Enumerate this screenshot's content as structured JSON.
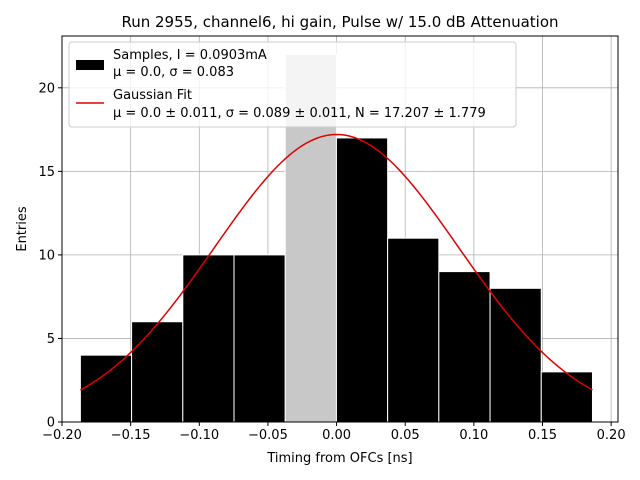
{
  "chart_data": {
    "type": "bar",
    "title": "Run 2955, channel6, hi gain, Pulse w/ 15.0 dB Attenuation",
    "xlabel": "Timing from OFCs [ns]",
    "ylabel": "Entries",
    "xlim": [
      -0.2,
      0.205
    ],
    "ylim": [
      0,
      23.1
    ],
    "grid": true,
    "xticks": [
      -0.2,
      -0.15,
      -0.1,
      -0.05,
      0.0,
      0.05,
      0.1,
      0.15,
      0.2
    ],
    "xtick_labels": [
      "−0.20",
      "−0.15",
      "−0.10",
      "−0.05",
      "0.00",
      "0.05",
      "0.10",
      "0.15",
      "0.20"
    ],
    "yticks": [
      0,
      5,
      10,
      15,
      20
    ],
    "ytick_labels": [
      "0",
      "5",
      "10",
      "15",
      "20"
    ],
    "bin_edges": [
      -0.1866,
      -0.1493,
      -0.112,
      -0.0747,
      -0.0374,
      -0.0001,
      0.0372,
      0.0745,
      0.1118,
      0.1491,
      0.1864
    ],
    "series": [
      {
        "name": "Samples, I = 0.0903mA",
        "name_line2": "μ = 0.0, σ = 0.083",
        "kind": "histogram",
        "color": "#000000",
        "values": [
          4,
          6,
          10,
          10,
          22,
          17,
          11,
          9,
          8,
          3
        ],
        "highlight_index": 4,
        "highlight_color": "#c8c8c8"
      },
      {
        "name": "Gaussian Fit",
        "name_line2": "μ = 0.0 ± 0.011, σ = 0.089 ± 0.011, N = 17.207 ± 1.779",
        "kind": "line",
        "color": "#e00000",
        "mu": 0.0,
        "sigma": 0.089,
        "N": 17.207,
        "x_range": [
          -0.1866,
          0.1864
        ]
      }
    ],
    "legend_position": "upper-left"
  }
}
